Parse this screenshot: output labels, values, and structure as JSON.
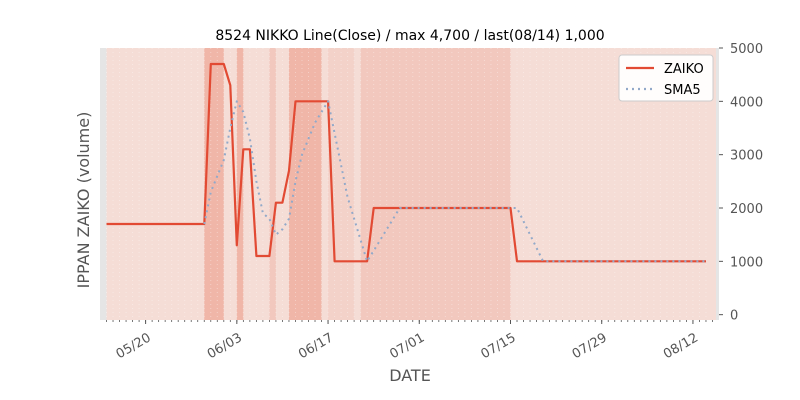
{
  "chart_data": {
    "type": "line",
    "title": "8524 NIKKO Line(Close) / max 4,700 / last(08/14) 1,000",
    "xlabel": "DATE",
    "ylabel": "IPPAN ZAIKO (volume)",
    "ylim": [
      -100,
      5000
    ],
    "yticks": [
      0,
      1000,
      2000,
      3000,
      4000,
      5000
    ],
    "ytick_labels": [
      "0",
      "1000",
      "2000",
      "3000",
      "4000",
      "5000"
    ],
    "y_axis_side": "right",
    "xticks": [
      {
        "date": "2024-05-20",
        "label": "05/20"
      },
      {
        "date": "2024-06-03",
        "label": "06/03"
      },
      {
        "date": "2024-06-17",
        "label": "06/17"
      },
      {
        "date": "2024-07-01",
        "label": "07/01"
      },
      {
        "date": "2024-07-15",
        "label": "07/15"
      },
      {
        "date": "2024-07-29",
        "label": "07/29"
      },
      {
        "date": "2024-08-12",
        "label": "08/12"
      }
    ],
    "xlim": [
      "2024-05-13",
      "2024-08-16"
    ],
    "grid": false,
    "legend_position": "top-right",
    "series": [
      {
        "name": "ZAIKO",
        "color": "#E24A33",
        "style": "solid",
        "points": [
          [
            "2024-05-14",
            1700
          ],
          [
            "2024-05-29",
            1700
          ],
          [
            "2024-05-30",
            4700
          ],
          [
            "2024-06-01",
            4700
          ],
          [
            "2024-06-02",
            4300
          ],
          [
            "2024-06-03",
            1300
          ],
          [
            "2024-06-04",
            3100
          ],
          [
            "2024-06-05",
            3100
          ],
          [
            "2024-06-06",
            1100
          ],
          [
            "2024-06-08",
            1100
          ],
          [
            "2024-06-09",
            2100
          ],
          [
            "2024-06-10",
            2100
          ],
          [
            "2024-06-11",
            2700
          ],
          [
            "2024-06-12",
            4000
          ],
          [
            "2024-06-17",
            4000
          ],
          [
            "2024-06-18",
            1000
          ],
          [
            "2024-06-23",
            1000
          ],
          [
            "2024-06-24",
            2000
          ],
          [
            "2024-07-15",
            2000
          ],
          [
            "2024-07-16",
            1000
          ],
          [
            "2024-08-14",
            1000
          ]
        ]
      },
      {
        "name": "SMA5",
        "color": "#92A9C9",
        "style": "dotted",
        "points": [
          [
            "2024-05-29",
            1700
          ],
          [
            "2024-05-30",
            2300
          ],
          [
            "2024-06-01",
            2900
          ],
          [
            "2024-06-02",
            3500
          ],
          [
            "2024-06-03",
            4000
          ],
          [
            "2024-06-04",
            3800
          ],
          [
            "2024-06-05",
            3300
          ],
          [
            "2024-06-06",
            2500
          ],
          [
            "2024-06-07",
            1900
          ],
          [
            "2024-06-08",
            1800
          ],
          [
            "2024-06-09",
            1500
          ],
          [
            "2024-06-10",
            1600
          ],
          [
            "2024-06-11",
            1800
          ],
          [
            "2024-06-12",
            2500
          ],
          [
            "2024-06-13",
            3000
          ],
          [
            "2024-06-15",
            3600
          ],
          [
            "2024-06-17",
            4000
          ],
          [
            "2024-06-18",
            3400
          ],
          [
            "2024-06-20",
            2200
          ],
          [
            "2024-06-23",
            1000
          ],
          [
            "2024-06-24",
            1200
          ],
          [
            "2024-06-25",
            1400
          ],
          [
            "2024-06-27",
            1800
          ],
          [
            "2024-06-28",
            2000
          ],
          [
            "2024-07-16",
            2000
          ],
          [
            "2024-07-20",
            1000
          ],
          [
            "2024-08-14",
            1000
          ]
        ]
      }
    ],
    "shaded_ranges": [
      {
        "start": "2024-05-29",
        "end": "2024-06-01",
        "intensity": "strong"
      },
      {
        "start": "2024-06-03",
        "end": "2024-06-04",
        "intensity": "strong"
      },
      {
        "start": "2024-06-08",
        "end": "2024-06-09",
        "intensity": "medium"
      },
      {
        "start": "2024-06-11",
        "end": "2024-06-16",
        "intensity": "strong"
      },
      {
        "start": "2024-06-17",
        "end": "2024-06-21",
        "intensity": "light"
      },
      {
        "start": "2024-06-22",
        "end": "2024-07-15",
        "intensity": "medium"
      }
    ]
  }
}
